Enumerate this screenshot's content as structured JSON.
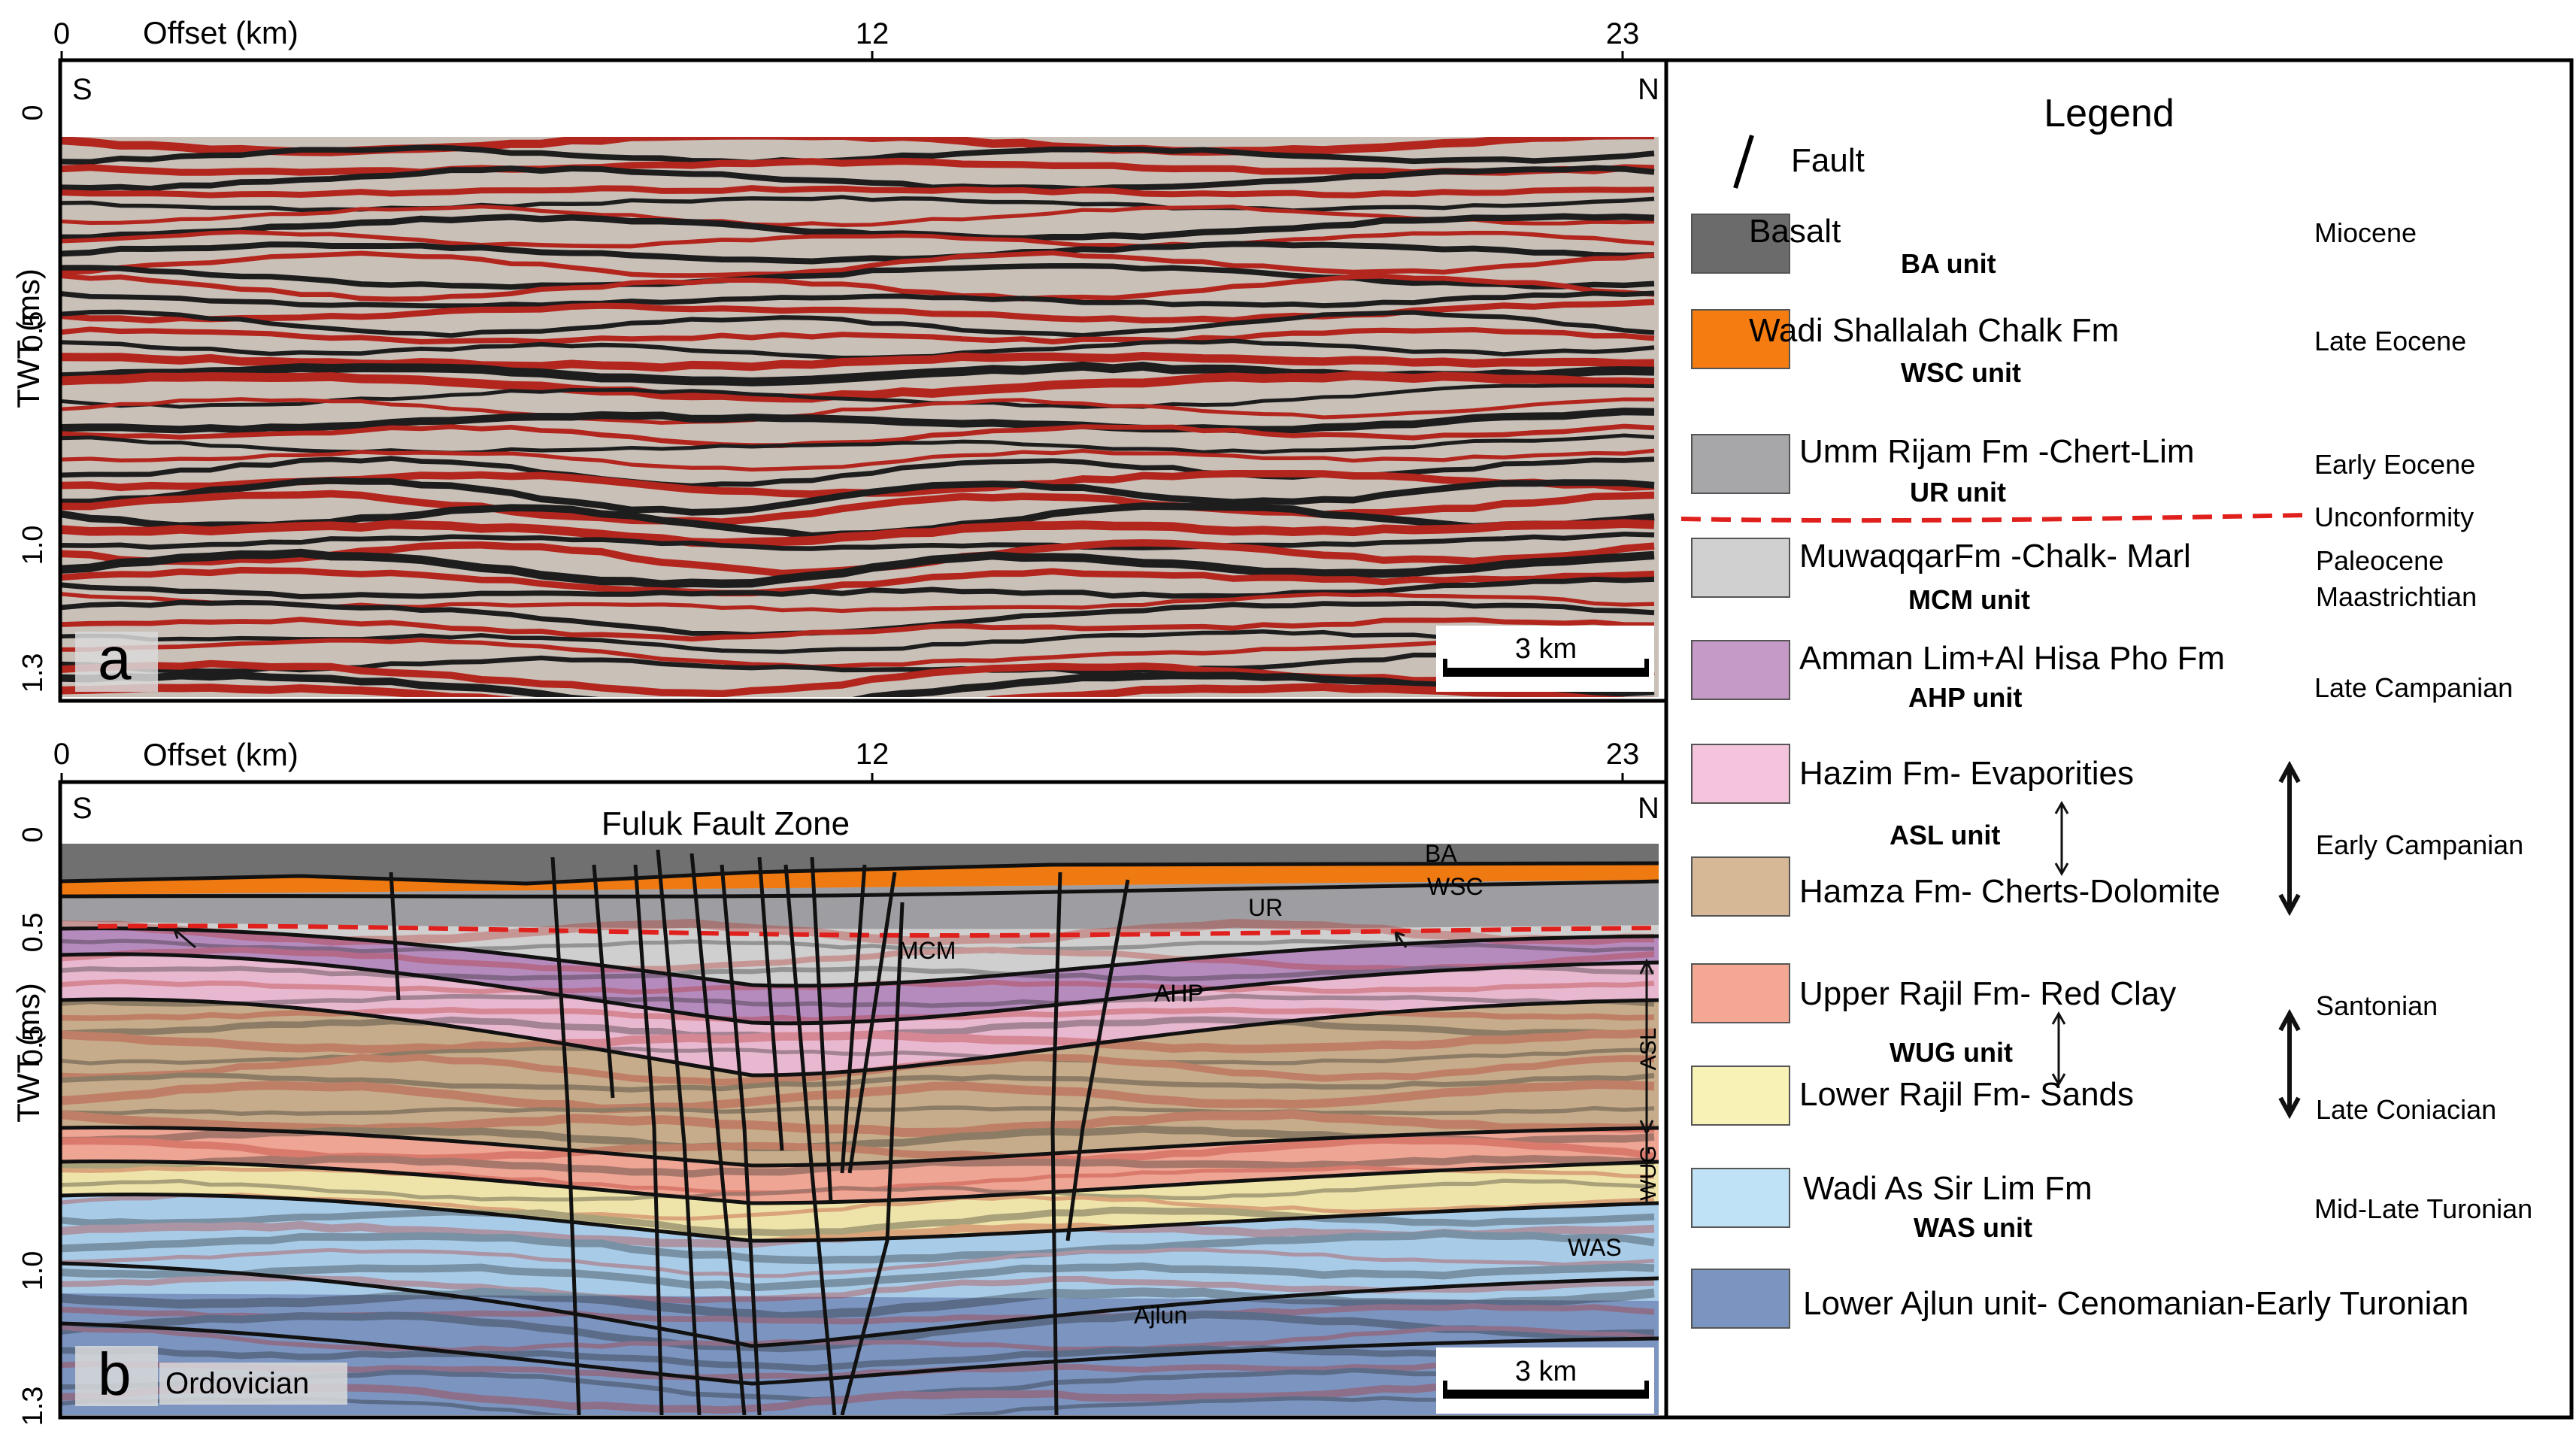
{
  "panel_a": {
    "offset_label": "Offset (km)",
    "offset_ticks": [
      "0",
      "12",
      "23"
    ],
    "time_label": "TWT (ms)",
    "time_ticks": [
      "0",
      "0.5",
      "1.0",
      "1.3"
    ],
    "left_direction": "S",
    "right_direction": "N",
    "panel_letter": "a",
    "scale_bar_label": "3 km"
  },
  "panel_b": {
    "offset_label": "Offset (km)",
    "offset_ticks": [
      "0",
      "12",
      "23"
    ],
    "time_label": "TWT (ms)",
    "time_ticks": [
      "0",
      "0.5",
      "0.5",
      "1.0",
      "1.3"
    ],
    "left_direction": "S",
    "right_direction": "N",
    "panel_letter": "b",
    "scale_bar_label": "3 km",
    "title": "Fuluk Fault Zone",
    "bottom_label": "Ordovician",
    "horizon_labels": [
      "BA",
      "WSC",
      "UR",
      "MCM",
      "AHP",
      "WAS",
      "Ajlun"
    ],
    "side_labels": [
      "ASL",
      "WUG"
    ]
  },
  "legend": {
    "title": "Legend",
    "fault_label": "Fault",
    "unconformity_label": "Unconformity",
    "unconformity_color": "#e0201c",
    "items": [
      {
        "name": "Basalt",
        "unit": "BA unit",
        "age": "Miocene",
        "color": "#6b6b6b"
      },
      {
        "name": "Wadi Shallalah Chalk Fm",
        "unit": "WSC unit",
        "age": "Late Eocene",
        "color": "#f57c10"
      },
      {
        "name": "Umm Rijam Fm -Chert-Lim",
        "unit": "UR unit",
        "age": "Early Eocene",
        "color": "#a7a7aa"
      },
      {
        "name": "MuwaqqarFm -Chalk- Marl",
        "unit": "MCM unit",
        "age": "Paleocene",
        "age2": "Maastrichtian",
        "color": "#d0d0d0"
      },
      {
        "name": "Amman Lim+Al Hisa Pho Fm",
        "unit": "AHP unit",
        "age": "Late Campanian",
        "color": "#c59ac7"
      },
      {
        "name": "Hazim Fm- Evaporities",
        "color": "#f4c4dc"
      },
      {
        "name": "Hamza Fm- Cherts-Dolomite",
        "color": "#d6b896"
      },
      {
        "name": "Upper Rajil Fm- Red Clay",
        "color": "#f4a894"
      },
      {
        "name": "Lower Rajil Fm- Sands",
        "color": "#f8f2b6"
      },
      {
        "name": "Wadi As Sir Lim Fm",
        "unit": "WAS unit",
        "age": "Mid-Late Turonian",
        "color": "#bfe2f6"
      },
      {
        "name": "Lower Ajlun unit- Cenomanian-Early Turonian",
        "color": "#7b94c0"
      }
    ],
    "asl_unit": "ASL unit",
    "asl_age": "Early Campanian",
    "wug_unit": "WUG unit",
    "wug_age_top": "Santonian",
    "wug_age_bottom": "Late Coniacian"
  },
  "colors": {
    "seismic_red": "#b3261e",
    "seismic_black": "#1d1d1d",
    "seismic_base": "#c9c0b8",
    "fault": "#111111",
    "horizon": "#111111"
  }
}
